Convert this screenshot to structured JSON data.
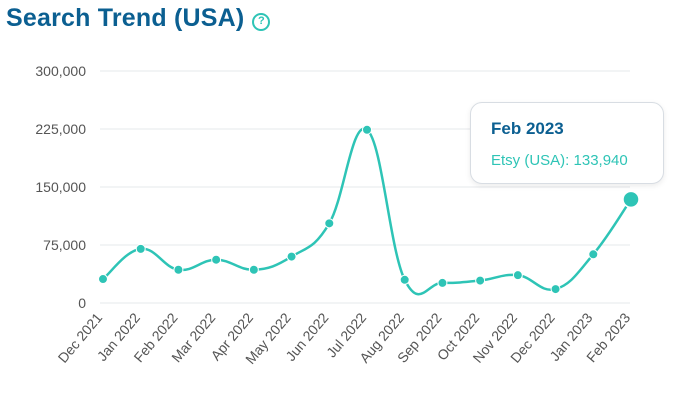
{
  "header": {
    "title": "Search Trend (USA)",
    "help_icon": "question-circle-icon",
    "help_glyph": "?"
  },
  "tooltip": {
    "title": "Feb 2023",
    "value_text": "Etsy (USA): 133,940"
  },
  "colors": {
    "title": "#0b5f91",
    "series": "#2ec4b6",
    "grid": "#e6e8eb",
    "axis_text": "#555555"
  },
  "chart_data": {
    "type": "line",
    "title": "Search Trend (USA)",
    "xlabel": "",
    "ylabel": "",
    "ylim": [
      0,
      300000
    ],
    "yticks": [
      0,
      75000,
      150000,
      225000,
      300000
    ],
    "ytick_labels": [
      "0",
      "75,000",
      "150,000",
      "225,000",
      "300,000"
    ],
    "grid": true,
    "categories": [
      "Dec 2021",
      "Jan 2022",
      "Feb 2022",
      "Mar 2022",
      "Apr 2022",
      "May 2022",
      "Jun 2022",
      "Jul 2022",
      "Aug 2022",
      "Sep 2022",
      "Oct 2022",
      "Nov 2022",
      "Dec 2022",
      "Jan 2023",
      "Feb 2023"
    ],
    "series": [
      {
        "name": "Etsy (USA)",
        "values": [
          31000,
          70000,
          43000,
          56000,
          43000,
          60000,
          103000,
          224000,
          30000,
          26000,
          29000,
          36000,
          18000,
          63000,
          133940
        ]
      }
    ],
    "highlighted_index": 14
  }
}
